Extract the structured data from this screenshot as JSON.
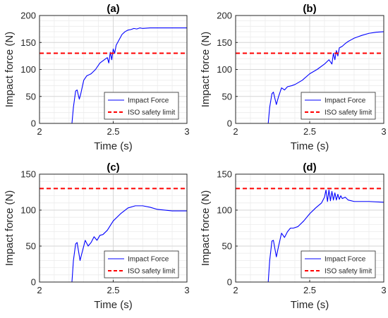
{
  "chart_data": [
    {
      "type": "line",
      "title": "(a)",
      "xlabel": "Time (s)",
      "ylabel": "Impact force (N)",
      "xlim": [
        2,
        3
      ],
      "ylim": [
        0,
        200
      ],
      "xticks": [
        2,
        2.5,
        3
      ],
      "xtick_labels": [
        "2",
        "2.5",
        "3"
      ],
      "yticks": [
        0,
        50,
        100,
        150,
        200
      ],
      "ytick_labels": [
        "0",
        "50",
        "100",
        "150",
        "200"
      ],
      "grid": true,
      "legend_position": "bottom-right",
      "series": [
        {
          "name": "Impact Force",
          "color": "#0000ff",
          "style": "solid",
          "x": [
            2,
            2.22,
            2.23,
            2.245,
            2.255,
            2.27,
            2.28,
            2.3,
            2.32,
            2.35,
            2.38,
            2.41,
            2.44,
            2.46,
            2.47,
            2.48,
            2.49,
            2.5,
            2.51,
            2.52,
            2.54,
            2.56,
            2.58,
            2.6,
            2.62,
            2.64,
            2.66,
            2.68,
            2.7,
            2.75,
            2.8,
            2.9,
            3.0
          ],
          "y": [
            0,
            0,
            30,
            60,
            62,
            45,
            55,
            80,
            88,
            92,
            100,
            112,
            118,
            122,
            112,
            132,
            118,
            138,
            130,
            145,
            155,
            165,
            170,
            173,
            174,
            176,
            175,
            177,
            176,
            177,
            177,
            177,
            177
          ]
        },
        {
          "name": "ISO safety limit",
          "color": "#ff0000",
          "style": "dashed",
          "x": [
            2,
            3
          ],
          "y": [
            130,
            130
          ]
        }
      ]
    },
    {
      "type": "line",
      "title": "(b)",
      "xlabel": "Time (s)",
      "ylabel": "Impact force (N)",
      "xlim": [
        2,
        3
      ],
      "ylim": [
        0,
        200
      ],
      "xticks": [
        2,
        2.5,
        3
      ],
      "xtick_labels": [
        "2",
        "2.5",
        "3"
      ],
      "yticks": [
        0,
        50,
        100,
        150,
        200
      ],
      "ytick_labels": [
        "0",
        "50",
        "100",
        "150",
        "200"
      ],
      "grid": true,
      "legend_position": "bottom-right",
      "series": [
        {
          "name": "Impact Force",
          "color": "#0000ff",
          "style": "solid",
          "x": [
            2,
            2.22,
            2.23,
            2.245,
            2.255,
            2.275,
            2.29,
            2.31,
            2.33,
            2.35,
            2.38,
            2.4,
            2.45,
            2.5,
            2.55,
            2.6,
            2.63,
            2.65,
            2.66,
            2.67,
            2.68,
            2.69,
            2.7,
            2.72,
            2.74,
            2.76,
            2.78,
            2.8,
            2.85,
            2.9,
            2.95,
            3.0
          ],
          "y": [
            0,
            0,
            30,
            55,
            58,
            35,
            50,
            66,
            62,
            68,
            70,
            72,
            80,
            92,
            100,
            110,
            118,
            110,
            130,
            118,
            135,
            125,
            140,
            143,
            148,
            152,
            155,
            158,
            163,
            167,
            169,
            170
          ]
        },
        {
          "name": "ISO safety limit",
          "color": "#ff0000",
          "style": "dashed",
          "x": [
            2,
            3
          ],
          "y": [
            130,
            130
          ]
        }
      ]
    },
    {
      "type": "line",
      "title": "(c)",
      "xlabel": "Time (s)",
      "ylabel": "Impact force (N)",
      "xlim": [
        2,
        3
      ],
      "ylim": [
        0,
        150
      ],
      "xticks": [
        2,
        2.5,
        3
      ],
      "xtick_labels": [
        "2",
        "2.5",
        "3"
      ],
      "yticks": [
        0,
        50,
        100,
        150
      ],
      "ytick_labels": [
        "0",
        "50",
        "100",
        "150"
      ],
      "grid": true,
      "legend_position": "bottom-right",
      "series": [
        {
          "name": "Impact Force",
          "color": "#0000ff",
          "style": "solid",
          "x": [
            2,
            2.22,
            2.23,
            2.245,
            2.255,
            2.275,
            2.29,
            2.31,
            2.33,
            2.35,
            2.37,
            2.39,
            2.41,
            2.43,
            2.46,
            2.5,
            2.55,
            2.6,
            2.65,
            2.7,
            2.75,
            2.8,
            2.9,
            3.0
          ],
          "y": [
            0,
            0,
            30,
            53,
            55,
            30,
            42,
            58,
            50,
            55,
            63,
            58,
            65,
            66,
            72,
            85,
            95,
            103,
            106,
            106,
            104,
            101,
            99,
            99
          ]
        },
        {
          "name": "ISO safety limit",
          "color": "#ff0000",
          "style": "dashed",
          "x": [
            2,
            3
          ],
          "y": [
            130,
            130
          ]
        }
      ]
    },
    {
      "type": "line",
      "title": "(d)",
      "xlabel": "Time (s)",
      "ylabel": "Impact force (N)",
      "xlim": [
        2,
        3
      ],
      "ylim": [
        0,
        150
      ],
      "xticks": [
        2,
        2.5,
        3
      ],
      "xtick_labels": [
        "2",
        "2.5",
        "3"
      ],
      "yticks": [
        0,
        50,
        100,
        150
      ],
      "ytick_labels": [
        "0",
        "50",
        "100",
        "150"
      ],
      "grid": true,
      "legend_position": "bottom-right",
      "series": [
        {
          "name": "Impact Force",
          "color": "#0000ff",
          "style": "solid",
          "x": [
            2,
            2.22,
            2.23,
            2.245,
            2.255,
            2.275,
            2.29,
            2.31,
            2.33,
            2.35,
            2.37,
            2.39,
            2.42,
            2.46,
            2.5,
            2.54,
            2.58,
            2.6,
            2.61,
            2.62,
            2.63,
            2.64,
            2.65,
            2.66,
            2.67,
            2.68,
            2.69,
            2.7,
            2.71,
            2.72,
            2.74,
            2.76,
            2.8,
            2.9,
            3.0
          ],
          "y": [
            0,
            0,
            30,
            57,
            58,
            35,
            50,
            68,
            62,
            70,
            75,
            75,
            77,
            85,
            95,
            103,
            110,
            118,
            128,
            112,
            128,
            113,
            126,
            114,
            124,
            114,
            122,
            115,
            120,
            116,
            118,
            114,
            112,
            112,
            111
          ]
        },
        {
          "name": "ISO safety limit",
          "color": "#ff0000",
          "style": "dashed",
          "x": [
            2,
            3
          ],
          "y": [
            130,
            130
          ]
        }
      ]
    }
  ]
}
